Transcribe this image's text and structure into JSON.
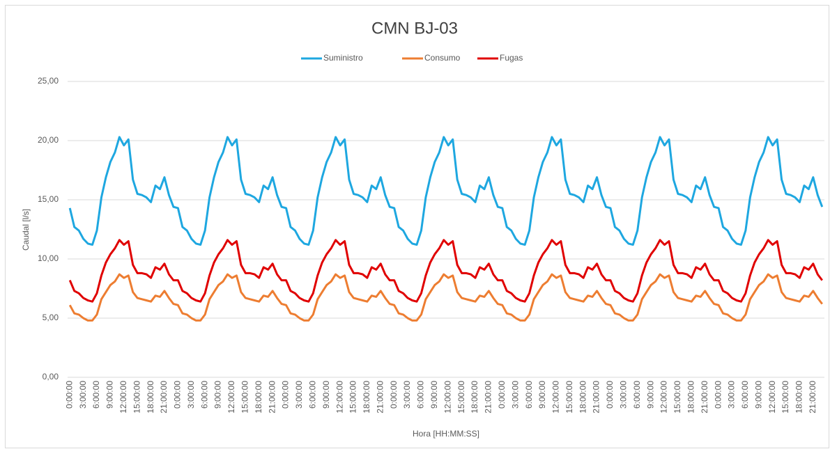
{
  "chart_data": {
    "type": "line",
    "title": "CMN BJ-03",
    "x_label": "Hora [HH:MM:SS]",
    "y_label": "Caudal [l/s]",
    "legend": "top",
    "grid": true,
    "ylim": [
      0,
      25
    ],
    "yticks": [
      {
        "value": 0,
        "label": "0,00"
      },
      {
        "value": 5,
        "label": "5,00"
      },
      {
        "value": 10,
        "label": "10,00"
      },
      {
        "value": 15,
        "label": "15,00"
      },
      {
        "value": 20,
        "label": "20,00"
      },
      {
        "value": 25,
        "label": "25,00"
      }
    ],
    "categories": [
      "0:00:00",
      null,
      null,
      "3:00:00",
      null,
      null,
      "6:00:00",
      null,
      null,
      "9:00:00",
      null,
      null,
      "12:00:00",
      null,
      null,
      "15:00:00",
      null,
      null,
      "18:00:00",
      null,
      null,
      "21:00:00",
      null,
      null,
      "0:00:00",
      null,
      null,
      "3:00:00",
      null,
      null,
      "6:00:00",
      null,
      null,
      "9:00:00",
      null,
      null,
      "12:00:00",
      null,
      null,
      "15:00:00",
      null,
      null,
      "18:00:00",
      null,
      null,
      "21:00:00",
      null,
      null,
      "0:00:00",
      null,
      null,
      "3:00:00",
      null,
      null,
      "6:00:00",
      null,
      null,
      "9:00:00",
      null,
      null,
      "12:00:00",
      null,
      null,
      "15:00:00",
      null,
      null,
      "18:00:00",
      null,
      null,
      "21:00:00",
      null,
      null,
      "0:00:00",
      null,
      null,
      "3:00:00",
      null,
      null,
      "6:00:00",
      null,
      null,
      "9:00:00",
      null,
      null,
      "12:00:00",
      null,
      null,
      "15:00:00",
      null,
      null,
      "18:00:00",
      null,
      null,
      "21:00:00",
      null,
      null,
      "0:00:00",
      null,
      null,
      "3:00:00",
      null,
      null,
      "6:00:00",
      null,
      null,
      "9:00:00",
      null,
      null,
      "12:00:00",
      null,
      null,
      "15:00:00",
      null,
      null,
      "18:00:00",
      null,
      null,
      "21:00:00",
      null,
      null,
      "0:00:00",
      null,
      null,
      "3:00:00",
      null,
      null,
      "6:00:00",
      null,
      null,
      "9:00:00",
      null,
      null,
      "12:00:00",
      null,
      null,
      "15:00:00",
      null,
      null,
      "18:00:00",
      null,
      null,
      "21:00:00",
      null,
      null,
      "0:00:00",
      null,
      null,
      "3:00:00",
      null,
      null,
      "6:00:00",
      null,
      null,
      "9:00:00",
      null,
      null,
      "12:00:00",
      null,
      null,
      "15:00:00",
      null,
      null,
      "18:00:00",
      null,
      null,
      "21:00:00",
      null,
      null
    ],
    "series": [
      {
        "name": "Suministro",
        "color": "#1ea7e0",
        "values": [
          14.3,
          12.7,
          12.4,
          11.7,
          11.3,
          11.2,
          12.4,
          15.2,
          16.9,
          18.2,
          19.0,
          20.3,
          19.6,
          20.1,
          16.7,
          15.5,
          15.4,
          15.2,
          14.8,
          16.2,
          15.9,
          16.9,
          15.4,
          14.4,
          14.3,
          12.7,
          12.4,
          11.7,
          11.3,
          11.2,
          12.4,
          15.2,
          16.9,
          18.2,
          19.0,
          20.3,
          19.6,
          20.1,
          16.7,
          15.5,
          15.4,
          15.2,
          14.8,
          16.2,
          15.9,
          16.9,
          15.4,
          14.4,
          14.3,
          12.7,
          12.4,
          11.7,
          11.3,
          11.2,
          12.4,
          15.2,
          16.9,
          18.2,
          19.0,
          20.3,
          19.6,
          20.1,
          16.7,
          15.5,
          15.4,
          15.2,
          14.8,
          16.2,
          15.9,
          16.9,
          15.4,
          14.4,
          14.3,
          12.7,
          12.4,
          11.7,
          11.3,
          11.2,
          12.4,
          15.2,
          16.9,
          18.2,
          19.0,
          20.3,
          19.6,
          20.1,
          16.7,
          15.5,
          15.4,
          15.2,
          14.8,
          16.2,
          15.9,
          16.9,
          15.4,
          14.4,
          14.3,
          12.7,
          12.4,
          11.7,
          11.3,
          11.2,
          12.4,
          15.2,
          16.9,
          18.2,
          19.0,
          20.3,
          19.6,
          20.1,
          16.7,
          15.5,
          15.4,
          15.2,
          14.8,
          16.2,
          15.9,
          16.9,
          15.4,
          14.4,
          14.3,
          12.7,
          12.4,
          11.7,
          11.3,
          11.2,
          12.4,
          15.2,
          16.9,
          18.2,
          19.0,
          20.3,
          19.6,
          20.1,
          16.7,
          15.5,
          15.4,
          15.2,
          14.8,
          16.2,
          15.9,
          16.9,
          15.4,
          14.4,
          14.3,
          12.7,
          12.4,
          11.7,
          11.3,
          11.2,
          12.4,
          15.2,
          16.9,
          18.2,
          19.0,
          20.3,
          19.6,
          20.1,
          16.7,
          15.5,
          15.4,
          15.2,
          14.8,
          16.2,
          15.9,
          16.9,
          15.4,
          14.4
        ]
      },
      {
        "name": "Consumo",
        "color": "#ed7d31",
        "values": [
          6.1,
          5.4,
          5.3,
          5.0,
          4.8,
          4.8,
          5.3,
          6.6,
          7.2,
          7.8,
          8.1,
          8.7,
          8.4,
          8.6,
          7.2,
          6.7,
          6.6,
          6.5,
          6.4,
          6.9,
          6.8,
          7.3,
          6.7,
          6.2,
          6.1,
          5.4,
          5.3,
          5.0,
          4.8,
          4.8,
          5.3,
          6.6,
          7.2,
          7.8,
          8.1,
          8.7,
          8.4,
          8.6,
          7.2,
          6.7,
          6.6,
          6.5,
          6.4,
          6.9,
          6.8,
          7.3,
          6.7,
          6.2,
          6.1,
          5.4,
          5.3,
          5.0,
          4.8,
          4.8,
          5.3,
          6.6,
          7.2,
          7.8,
          8.1,
          8.7,
          8.4,
          8.6,
          7.2,
          6.7,
          6.6,
          6.5,
          6.4,
          6.9,
          6.8,
          7.3,
          6.7,
          6.2,
          6.1,
          5.4,
          5.3,
          5.0,
          4.8,
          4.8,
          5.3,
          6.6,
          7.2,
          7.8,
          8.1,
          8.7,
          8.4,
          8.6,
          7.2,
          6.7,
          6.6,
          6.5,
          6.4,
          6.9,
          6.8,
          7.3,
          6.7,
          6.2,
          6.1,
          5.4,
          5.3,
          5.0,
          4.8,
          4.8,
          5.3,
          6.6,
          7.2,
          7.8,
          8.1,
          8.7,
          8.4,
          8.6,
          7.2,
          6.7,
          6.6,
          6.5,
          6.4,
          6.9,
          6.8,
          7.3,
          6.7,
          6.2,
          6.1,
          5.4,
          5.3,
          5.0,
          4.8,
          4.8,
          5.3,
          6.6,
          7.2,
          7.8,
          8.1,
          8.7,
          8.4,
          8.6,
          7.2,
          6.7,
          6.6,
          6.5,
          6.4,
          6.9,
          6.8,
          7.3,
          6.7,
          6.2,
          6.1,
          5.4,
          5.3,
          5.0,
          4.8,
          4.8,
          5.3,
          6.6,
          7.2,
          7.8,
          8.1,
          8.7,
          8.4,
          8.6,
          7.2,
          6.7,
          6.6,
          6.5,
          6.4,
          6.9,
          6.8,
          7.3,
          6.7,
          6.2
        ]
      },
      {
        "name": "Fugas",
        "color": "#e00000",
        "values": [
          8.2,
          7.3,
          7.1,
          6.7,
          6.5,
          6.4,
          7.1,
          8.6,
          9.7,
          10.4,
          10.9,
          11.6,
          11.2,
          11.5,
          9.5,
          8.8,
          8.8,
          8.7,
          8.4,
          9.3,
          9.1,
          9.6,
          8.7,
          8.2,
          8.2,
          7.3,
          7.1,
          6.7,
          6.5,
          6.4,
          7.1,
          8.6,
          9.7,
          10.4,
          10.9,
          11.6,
          11.2,
          11.5,
          9.5,
          8.8,
          8.8,
          8.7,
          8.4,
          9.3,
          9.1,
          9.6,
          8.7,
          8.2,
          8.2,
          7.3,
          7.1,
          6.7,
          6.5,
          6.4,
          7.1,
          8.6,
          9.7,
          10.4,
          10.9,
          11.6,
          11.2,
          11.5,
          9.5,
          8.8,
          8.8,
          8.7,
          8.4,
          9.3,
          9.1,
          9.6,
          8.7,
          8.2,
          8.2,
          7.3,
          7.1,
          6.7,
          6.5,
          6.4,
          7.1,
          8.6,
          9.7,
          10.4,
          10.9,
          11.6,
          11.2,
          11.5,
          9.5,
          8.8,
          8.8,
          8.7,
          8.4,
          9.3,
          9.1,
          9.6,
          8.7,
          8.2,
          8.2,
          7.3,
          7.1,
          6.7,
          6.5,
          6.4,
          7.1,
          8.6,
          9.7,
          10.4,
          10.9,
          11.6,
          11.2,
          11.5,
          9.5,
          8.8,
          8.8,
          8.7,
          8.4,
          9.3,
          9.1,
          9.6,
          8.7,
          8.2,
          8.2,
          7.3,
          7.1,
          6.7,
          6.5,
          6.4,
          7.1,
          8.6,
          9.7,
          10.4,
          10.9,
          11.6,
          11.2,
          11.5,
          9.5,
          8.8,
          8.8,
          8.7,
          8.4,
          9.3,
          9.1,
          9.6,
          8.7,
          8.2,
          8.2,
          7.3,
          7.1,
          6.7,
          6.5,
          6.4,
          7.1,
          8.6,
          9.7,
          10.4,
          10.9,
          11.6,
          11.2,
          11.5,
          9.5,
          8.8,
          8.8,
          8.7,
          8.4,
          9.3,
          9.1,
          9.6,
          8.7,
          8.2
        ]
      }
    ]
  }
}
